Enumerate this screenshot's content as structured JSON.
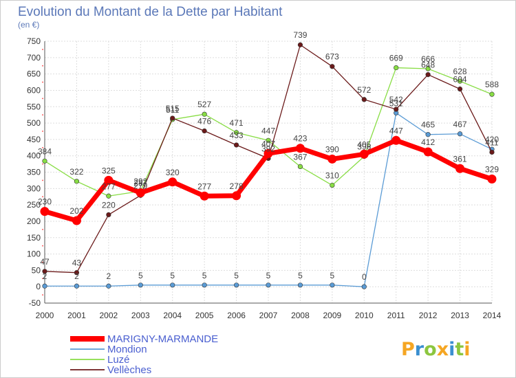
{
  "chart_data": {
    "type": "line",
    "title": "Evolution du Montant de la Dette par Habitant",
    "subtitle": "(en €)",
    "xlabel": "",
    "ylabel": "",
    "ylim": [
      -50,
      750
    ],
    "yticks": [
      -50,
      0,
      50,
      100,
      150,
      200,
      250,
      300,
      350,
      400,
      450,
      500,
      550,
      600,
      650,
      700,
      750
    ],
    "categories": [
      "2000",
      "2001",
      "2002",
      "2003",
      "2004",
      "2005",
      "2006",
      "2007",
      "2008",
      "2009",
      "2010",
      "2011",
      "2012",
      "2013",
      "2014"
    ],
    "grid": true,
    "legend_position": "bottom-left",
    "series": [
      {
        "name": "MARIGNY-MARMANDE",
        "color": "#ff0000",
        "values": [
          230,
          202,
          325,
          287,
          320,
          277,
          278,
          407,
          423,
          390,
          405,
          447,
          412,
          361,
          329
        ],
        "labels": [
          "230",
          "202",
          "325",
          "287",
          "320",
          "277",
          "278",
          "407",
          "423",
          "390",
          "405",
          "447",
          "412",
          "361",
          "329"
        ]
      },
      {
        "name": "Mondion",
        "color": "#5a9bd5",
        "values": [
          2,
          2,
          2,
          5,
          5,
          5,
          5,
          5,
          5,
          5,
          0,
          531,
          465,
          467,
          420
        ],
        "labels": [
          "2",
          "2",
          "2",
          "5",
          "5",
          "5",
          "5",
          "5",
          "5",
          "5",
          "0",
          "531",
          "465",
          "467",
          "420"
        ]
      },
      {
        "name": "Luzé",
        "color": "#88dd44",
        "values": [
          384,
          322,
          277,
          292,
          511,
          527,
          471,
          447,
          367,
          310,
          398,
          669,
          666,
          628,
          588
        ],
        "labels": [
          "384",
          "322",
          "277",
          "292",
          "511",
          "527",
          "471",
          "447",
          "367",
          "310",
          "398",
          "669",
          "666",
          "628",
          "588"
        ]
      },
      {
        "name": "Vellèches",
        "color": "#6b1a1a",
        "values": [
          47,
          43,
          220,
          279,
          515,
          476,
          433,
          392,
          739,
          673,
          572,
          542,
          648,
          604,
          411
        ],
        "labels": [
          "47",
          "43",
          "220",
          "279",
          "515",
          "476",
          "433",
          "392",
          "739",
          "673",
          "572",
          "542",
          "648",
          "604",
          "411"
        ]
      }
    ]
  },
  "branding": {
    "letters": [
      "P",
      "r",
      "o",
      "x",
      "i",
      "t",
      "i"
    ],
    "letter_colors": [
      "#f5a623",
      "#3a8fd0",
      "#8cc63f",
      "#f5a623",
      "#3a8fd0",
      "#8cc63f",
      "#f5a623"
    ]
  }
}
